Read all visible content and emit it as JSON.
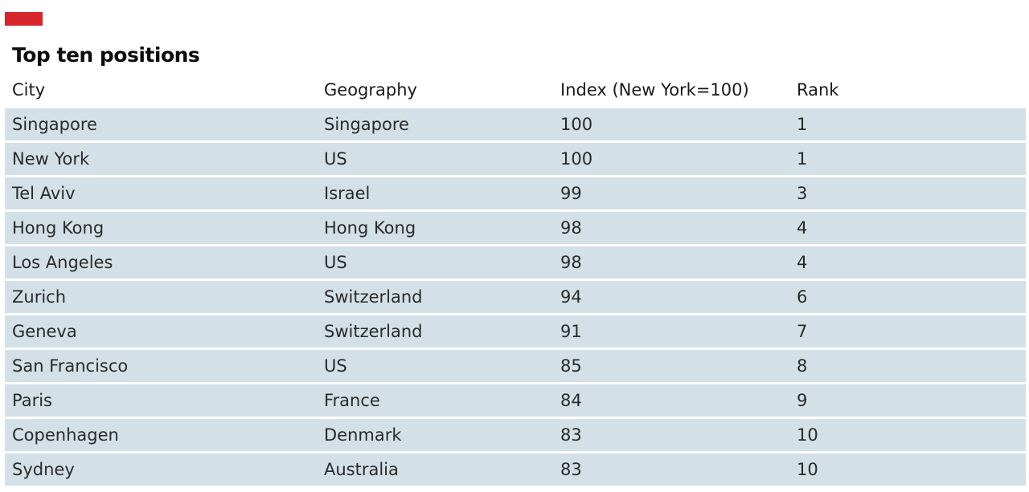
{
  "brand_color": "#d7262b",
  "row_color": "#d3e0e8",
  "chart_data": {
    "type": "table",
    "title": "Top ten positions",
    "columns": [
      "City",
      "Geography",
      "Index (New York=100)",
      "Rank"
    ],
    "rows": [
      [
        "Singapore",
        "Singapore",
        "100",
        "1"
      ],
      [
        "New York",
        "US",
        "100",
        "1"
      ],
      [
        "Tel Aviv",
        "Israel",
        "99",
        "3"
      ],
      [
        "Hong Kong",
        "Hong Kong",
        "98",
        "4"
      ],
      [
        "Los Angeles",
        "US",
        "98",
        "4"
      ],
      [
        "Zurich",
        "Switzerland",
        "94",
        "6"
      ],
      [
        "Geneva",
        "Switzerland",
        "91",
        "7"
      ],
      [
        "San Francisco",
        "US",
        "85",
        "8"
      ],
      [
        "Paris",
        "France",
        "84",
        "9"
      ],
      [
        "Copenhagen",
        "Denmark",
        "83",
        "10"
      ],
      [
        "Sydney",
        "Australia",
        "83",
        "10"
      ]
    ]
  }
}
